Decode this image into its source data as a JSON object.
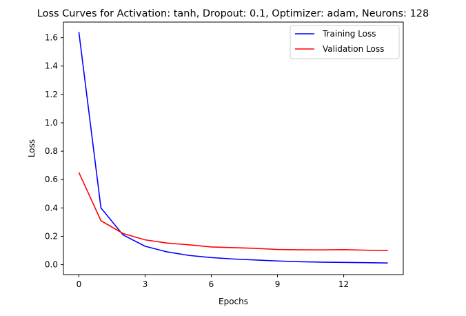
{
  "chart_data": {
    "type": "line",
    "title": "Loss Curves for Activation: tanh, Dropout: 0.1, Optimizer: adam, Neurons: 128",
    "xlabel": "Epochs",
    "ylabel": "Loss",
    "x": [
      0,
      1,
      2,
      3,
      4,
      5,
      6,
      7,
      8,
      9,
      10,
      11,
      12,
      13,
      14
    ],
    "xlim": [
      -0.7,
      14.7
    ],
    "ylim": [
      -0.07,
      1.71
    ],
    "xticks": [
      0,
      3,
      6,
      9,
      12
    ],
    "xtick_labels": [
      "0",
      "3",
      "6",
      "9",
      "12"
    ],
    "yticks": [
      0.0,
      0.2,
      0.4,
      0.6,
      0.8,
      1.0,
      1.2,
      1.4,
      1.6
    ],
    "ytick_labels": [
      "0.0",
      "0.2",
      "0.4",
      "0.6",
      "0.8",
      "1.0",
      "1.2",
      "1.4",
      "1.6"
    ],
    "grid": false,
    "legend_position": "upper right",
    "series": [
      {
        "name": "Training Loss",
        "color": "#0000ff",
        "values": [
          1.64,
          0.4,
          0.21,
          0.13,
          0.09,
          0.065,
          0.05,
          0.04,
          0.033,
          0.026,
          0.021,
          0.018,
          0.016,
          0.014,
          0.012
        ]
      },
      {
        "name": "Validation Loss",
        "color": "#ff0000",
        "values": [
          0.65,
          0.31,
          0.22,
          0.175,
          0.152,
          0.14,
          0.125,
          0.12,
          0.115,
          0.107,
          0.105,
          0.104,
          0.106,
          0.102,
          0.1
        ]
      }
    ]
  }
}
